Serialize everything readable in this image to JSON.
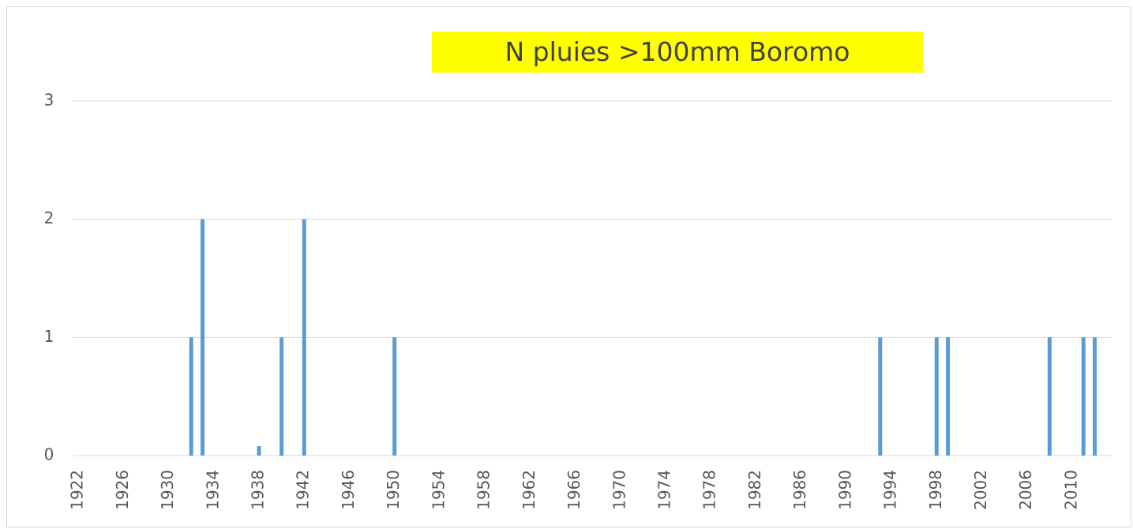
{
  "chart_data": {
    "type": "bar",
    "title": "N pluies >100mm Boromo",
    "categories": [
      "1922",
      null,
      null,
      null,
      "1926",
      null,
      null,
      null,
      "1930",
      null,
      null,
      null,
      "1934",
      null,
      null,
      null,
      "1938",
      null,
      null,
      null,
      "1942",
      null,
      null,
      null,
      "1946",
      null,
      null,
      null,
      "1950",
      null,
      null,
      null,
      "1954",
      null,
      null,
      null,
      "1958",
      null,
      null,
      null,
      "1962",
      null,
      null,
      null,
      "1966",
      null,
      null,
      null,
      "1970",
      null,
      null,
      null,
      "1974",
      null,
      null,
      null,
      "1978",
      null,
      null,
      null,
      "1982",
      null,
      null,
      null,
      "1986",
      null,
      null,
      null,
      "1990",
      null,
      null,
      null,
      "1994",
      null,
      null,
      null,
      "1998",
      null,
      null,
      null,
      "2002",
      null,
      null,
      null,
      "2006",
      null,
      null,
      null,
      "2010",
      null,
      null,
      null
    ],
    "values": [
      0,
      0,
      0,
      0,
      0,
      0,
      0,
      0,
      0,
      0,
      1,
      2,
      0,
      0,
      0,
      0,
      0.08,
      0,
      1,
      0,
      2,
      0,
      0,
      0,
      0,
      0,
      0,
      0,
      1,
      0,
      0,
      0,
      0,
      0,
      0,
      0,
      0,
      0,
      0,
      0,
      0,
      0,
      0,
      0,
      0,
      0,
      0,
      0,
      0,
      0,
      0,
      0,
      0,
      0,
      0,
      0,
      0,
      0,
      0,
      0,
      0,
      0,
      0,
      0,
      0,
      0,
      0,
      0,
      0,
      0,
      0,
      1,
      0,
      0,
      0,
      0,
      1,
      1,
      0,
      0,
      0,
      0,
      0,
      0,
      0,
      0,
      1,
      0,
      0,
      1,
      1,
      0
    ],
    "color": "#5b9bd5",
    "ylim": [
      0,
      3
    ],
    "yticks": [
      0,
      1,
      2,
      3
    ],
    "grid": true
  }
}
